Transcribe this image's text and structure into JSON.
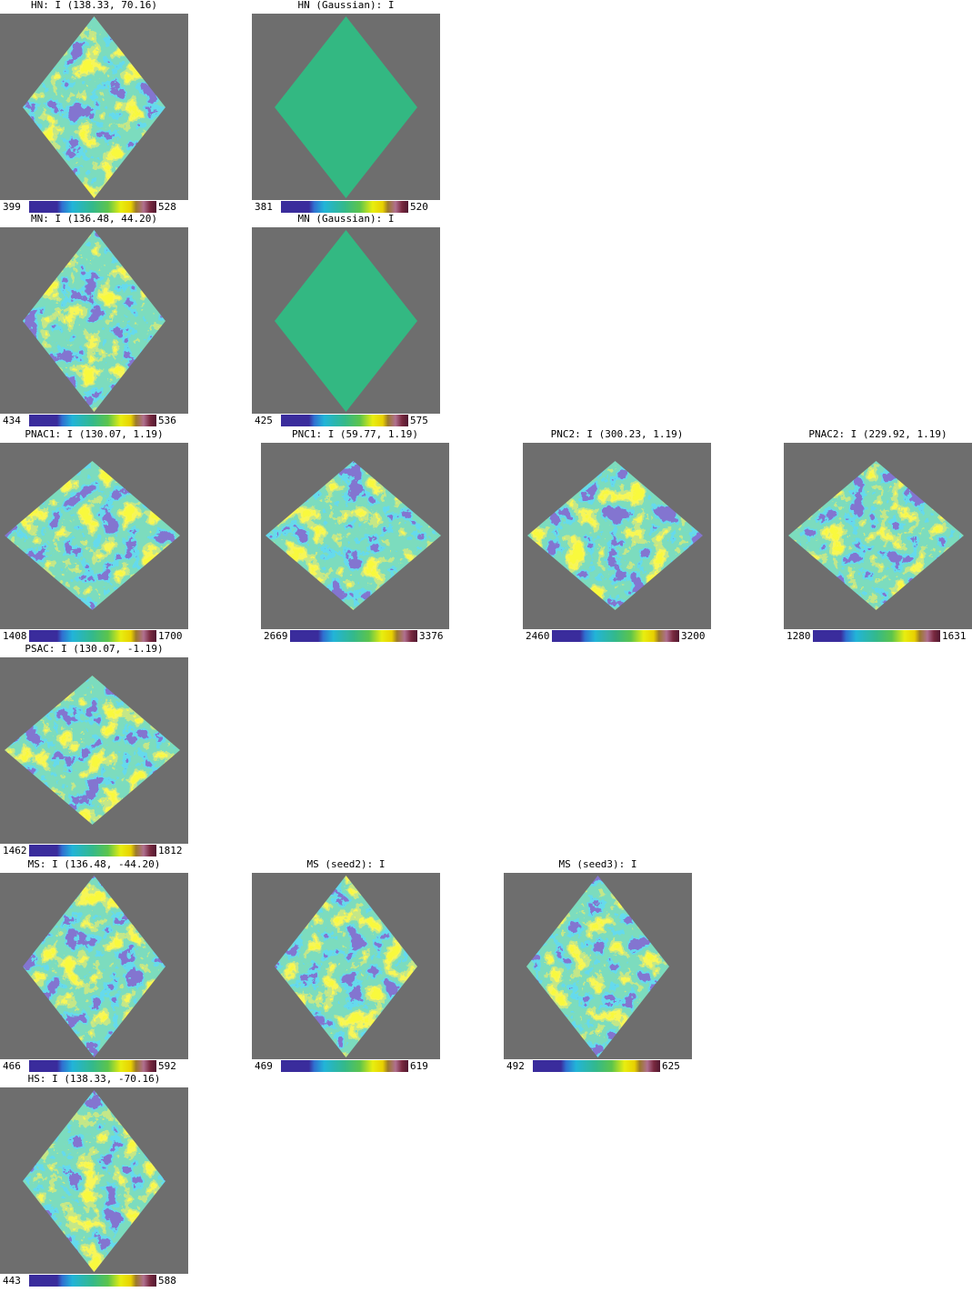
{
  "panels": [
    {
      "title": "HN: I (138.33, 70.16)",
      "min": 399,
      "max": 528
    },
    {
      "title": "HN (Gaussian): I",
      "min": 381,
      "max": 520
    },
    {
      "title": "MN: I (136.48, 44.20)",
      "min": 434,
      "max": 536
    },
    {
      "title": "MN (Gaussian): I",
      "min": 425,
      "max": 575
    },
    {
      "title": "PNAC1: I (130.07, 1.19)",
      "min": 1408,
      "max": 1700
    },
    {
      "title": "PNC1: I (59.77, 1.19)",
      "min": 2669,
      "max": 3376
    },
    {
      "title": "PNC2: I (300.23, 1.19)",
      "min": 2460,
      "max": 3200
    },
    {
      "title": "PNAC2: I (229.92, 1.19)",
      "min": 1280,
      "max": 1631
    },
    {
      "title": "PSAC: I (130.07, -1.19)",
      "min": 1462,
      "max": 1812
    },
    {
      "title": "MS: I (136.48, -44.20)",
      "min": 466,
      "max": 592
    },
    {
      "title": "MS (seed2): I",
      "min": 469,
      "max": 619
    },
    {
      "title": "MS (seed3): I",
      "min": 492,
      "max": 625
    },
    {
      "title": "HS: I (138.33, -70.16)",
      "min": 443,
      "max": 588
    }
  ]
}
